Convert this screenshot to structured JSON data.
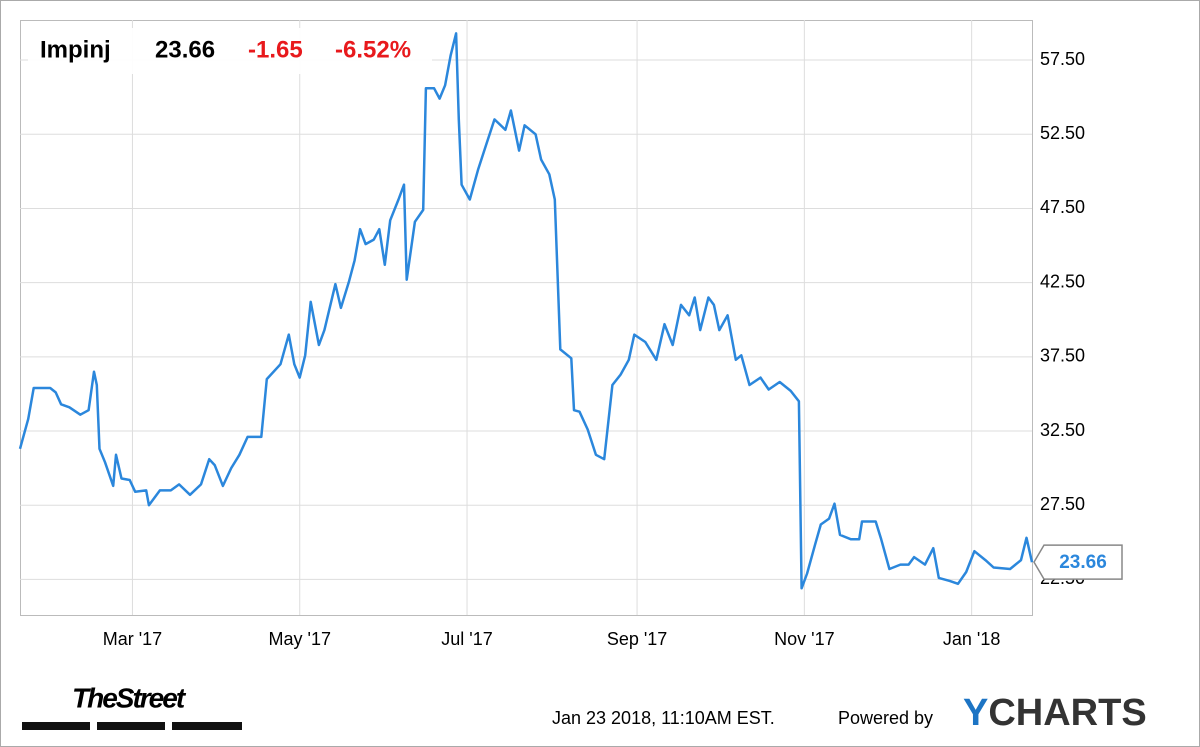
{
  "chart_data": {
    "type": "line",
    "header": {
      "name": "Impinj",
      "change": -1.65,
      "change_pct": "-6.52%"
    },
    "x": [
      0,
      3,
      5,
      11,
      13,
      15,
      18,
      22,
      25,
      27,
      28,
      29,
      31,
      34,
      35,
      37,
      40,
      42,
      46,
      47,
      51,
      55,
      58,
      62,
      66,
      69,
      71,
      74,
      77,
      80,
      83,
      88,
      90,
      95,
      98,
      100,
      102,
      104,
      106,
      109,
      111,
      115,
      117,
      120,
      122,
      124,
      126,
      129,
      131,
      133,
      135,
      138,
      140,
      141,
      144,
      147,
      148,
      151,
      153,
      155,
      157,
      159,
      160,
      161,
      164,
      167,
      170,
      173,
      177,
      179,
      182,
      184,
      188,
      190,
      193,
      195,
      197,
      201,
      202,
      204,
      207,
      210,
      213,
      216,
      219,
      222,
      224,
      228,
      232,
      235,
      238,
      241,
      244,
      246,
      248,
      251,
      253,
      255,
      258,
      261,
      263,
      266,
      270,
      273,
      277,
      281,
      284,
      285,
      287,
      290,
      292,
      295,
      297,
      299,
      303,
      306,
      307,
      312,
      314,
      317,
      321,
      324,
      326,
      330,
      333,
      335,
      339,
      342,
      345,
      348,
      352,
      355,
      361,
      365,
      367,
      369
    ],
    "series": [
      {
        "name": "Impinj",
        "color": "#2b87dc",
        "values": [
          31.3,
          33.3,
          35.4,
          35.4,
          35.1,
          34.3,
          34.1,
          33.6,
          33.9,
          36.5,
          35.6,
          31.3,
          30.4,
          28.8,
          30.9,
          29.3,
          29.2,
          28.4,
          28.5,
          27.5,
          28.5,
          28.5,
          28.9,
          28.2,
          28.9,
          30.6,
          30.2,
          28.8,
          30.0,
          30.9,
          32.1,
          32.1,
          36.0,
          37.0,
          39.0,
          37.0,
          36.1,
          37.6,
          41.2,
          38.3,
          39.3,
          42.4,
          40.8,
          42.6,
          44.0,
          46.1,
          45.1,
          45.4,
          46.1,
          43.7,
          46.7,
          48.1,
          49.1,
          42.7,
          46.6,
          47.4,
          55.6,
          55.6,
          54.9,
          55.8,
          57.8,
          59.3,
          53.5,
          49.1,
          48.1,
          50.1,
          51.8,
          53.5,
          52.8,
          54.1,
          51.4,
          53.1,
          52.5,
          50.8,
          49.8,
          48.1,
          38.0,
          37.4,
          33.9,
          33.8,
          32.6,
          30.9,
          30.6,
          35.6,
          36.3,
          37.3,
          39.0,
          38.5,
          37.3,
          39.7,
          38.3,
          41.0,
          40.3,
          41.5,
          39.3,
          41.5,
          41.0,
          39.3,
          40.3,
          37.3,
          37.6,
          35.6,
          36.1,
          35.3,
          35.8,
          35.2,
          34.5,
          21.9,
          22.9,
          24.9,
          26.2,
          26.6,
          27.6,
          25.5,
          25.2,
          25.2,
          26.4,
          26.4,
          25.2,
          23.2,
          23.5,
          23.5,
          24.0,
          23.5,
          24.6,
          22.6,
          22.4,
          22.2,
          23.0,
          24.4,
          23.8,
          23.3,
          23.2,
          23.8,
          25.3,
          23.66
        ]
      }
    ],
    "xlim": [
      0,
      369
    ],
    "xticks": [
      {
        "value": 41,
        "label": "Mar '17"
      },
      {
        "value": 102,
        "label": "May '17"
      },
      {
        "value": 163,
        "label": "Jul '17"
      },
      {
        "value": 225,
        "label": "Sep '17"
      },
      {
        "value": 286,
        "label": "Nov '17"
      },
      {
        "value": 347,
        "label": "Jan '18"
      }
    ],
    "ylim": [
      20.1,
      60.2
    ],
    "yticks": [
      {
        "value": 22.5,
        "label": "22.50"
      },
      {
        "value": 27.5,
        "label": "27.50"
      },
      {
        "value": 32.5,
        "label": "32.50"
      },
      {
        "value": 37.5,
        "label": "37.50"
      },
      {
        "value": 42.5,
        "label": "42.50"
      },
      {
        "value": 47.5,
        "label": "47.50"
      },
      {
        "value": 52.5,
        "label": "52.50"
      },
      {
        "value": 57.5,
        "label": "57.50"
      }
    ],
    "grid": true,
    "source": "TheStreet",
    "timestamp": "Jan 23 2018, 11:10AM EST.",
    "powered_by": "Powered by",
    "brand_initial": "Y",
    "brand_rest": "CHARTS"
  }
}
